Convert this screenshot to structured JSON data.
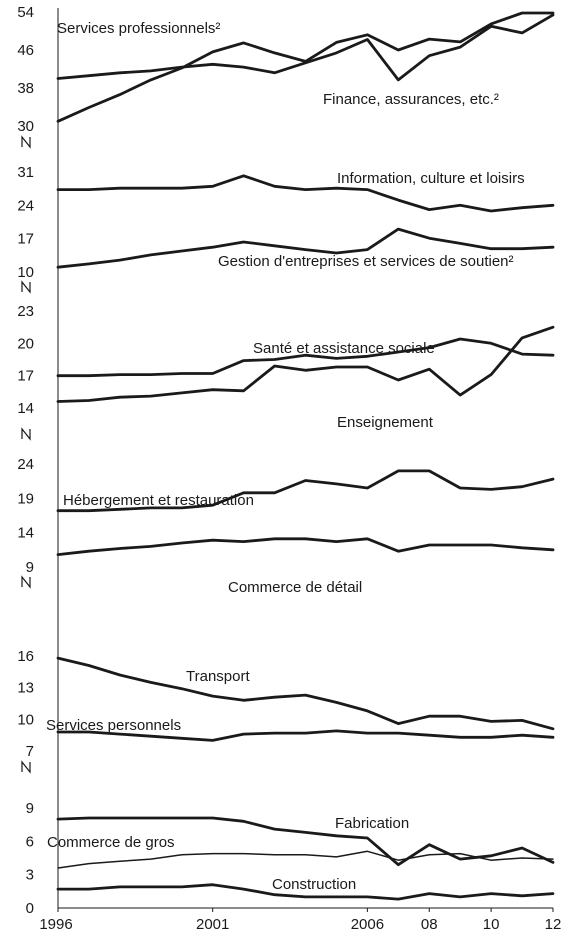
{
  "chart_data": [
    {
      "type": "line",
      "x": [
        1996,
        1997,
        1998,
        1999,
        2000,
        2001,
        2002,
        2003,
        2004,
        2005,
        2006,
        2007,
        2008,
        2009,
        2010,
        2011,
        2012
      ],
      "y_ticks": [
        "30",
        "38",
        "46",
        "54"
      ],
      "ylim": [
        30,
        54
      ],
      "axis_break": "N",
      "series": [
        {
          "name": "Services professionnels²",
          "values": [
            40,
            40.6,
            41.2,
            41.6,
            42.4,
            43,
            42.4,
            41.2,
            43.3,
            45.4,
            48.2,
            39.7,
            44.8,
            46.6,
            51,
            49.6,
            53.4
          ]
        },
        {
          "name": "Finance, assurances, etc.²",
          "values": [
            31,
            33.9,
            36.6,
            39.7,
            42.2,
            45.6,
            47.5,
            45.4,
            43.6,
            47.6,
            49.2,
            46,
            48.3,
            47.7,
            51.5,
            53.8,
            53.8
          ]
        }
      ]
    },
    {
      "type": "line",
      "x": [
        1996,
        1997,
        1998,
        1999,
        2000,
        2001,
        2002,
        2003,
        2004,
        2005,
        2006,
        2007,
        2008,
        2009,
        2010,
        2011,
        2012
      ],
      "y_ticks": [
        "10",
        "17",
        "24",
        "31"
      ],
      "ylim": [
        10,
        31
      ],
      "axis_break": "N",
      "series": [
        {
          "name": "Information, culture et loisirs",
          "values": [
            27.3,
            27.3,
            27.6,
            27.6,
            27.6,
            28,
            30.2,
            28,
            27.3,
            27.6,
            27.3,
            25.1,
            23.1,
            24,
            22.8,
            23.5,
            24
          ]
        },
        {
          "name": "Gestion d'entreprises et services de soutien²",
          "values": [
            11,
            11.7,
            12.5,
            13.6,
            14.4,
            15.2,
            16.3,
            15.5,
            14.7,
            14,
            14.7,
            19,
            17.1,
            16,
            14.9,
            14.9,
            15.2
          ]
        }
      ]
    },
    {
      "type": "line",
      "x": [
        1996,
        1997,
        1998,
        1999,
        2000,
        2001,
        2002,
        2003,
        2004,
        2005,
        2006,
        2007,
        2008,
        2009,
        2010,
        2011,
        2012
      ],
      "y_ticks": [
        "14",
        "17",
        "20",
        "23"
      ],
      "ylim": [
        14,
        23
      ],
      "axis_break": "N",
      "series": [
        {
          "name": "Santé et assistance sociale",
          "values": [
            17,
            17,
            17.1,
            17.1,
            17.2,
            17.2,
            18.4,
            18.5,
            18.9,
            18.6,
            18.8,
            19.2,
            19.6,
            20.4,
            20,
            19,
            18.9
          ]
        },
        {
          "name": "Enseignement",
          "values": [
            14.6,
            14.7,
            15,
            15.1,
            15.4,
            15.7,
            15.6,
            17.9,
            17.5,
            17.8,
            17.8,
            16.6,
            17.6,
            15.2,
            17.1,
            20.5,
            21.5
          ]
        }
      ]
    },
    {
      "type": "line",
      "x": [
        1996,
        1997,
        1998,
        1999,
        2000,
        2001,
        2002,
        2003,
        2004,
        2005,
        2006,
        2007,
        2008,
        2009,
        2010,
        2011,
        2012
      ],
      "y_ticks": [
        "9",
        "14",
        "19",
        "24"
      ],
      "ylim": [
        9,
        24
      ],
      "axis_break": "N",
      "series": [
        {
          "name": "Hébergement et restauration",
          "values": [
            17.2,
            17.2,
            17.4,
            17.6,
            17.6,
            18,
            19.8,
            19.8,
            21.6,
            21.1,
            20.5,
            23,
            23,
            20.5,
            20.3,
            20.7,
            21.8
          ]
        },
        {
          "name": "Commerce de détail",
          "values": [
            10.8,
            11.3,
            11.7,
            12,
            12.5,
            12.9,
            12.7,
            13.1,
            13.1,
            12.7,
            13.1,
            11.3,
            12.2,
            12.2,
            12.2,
            11.8,
            11.5
          ]
        }
      ]
    },
    {
      "type": "line",
      "x": [
        1996,
        1997,
        1998,
        1999,
        2000,
        2001,
        2002,
        2003,
        2004,
        2005,
        2006,
        2007,
        2008,
        2009,
        2010,
        2011,
        2012
      ],
      "y_ticks": [
        "7",
        "10",
        "13",
        "16"
      ],
      "ylim": [
        7,
        16
      ],
      "axis_break": "N",
      "series": [
        {
          "name": "Transport",
          "values": [
            15.8,
            15.1,
            14.2,
            13.5,
            12.9,
            12.2,
            11.8,
            12.1,
            12.3,
            11.6,
            10.8,
            9.6,
            10.3,
            10.3,
            9.8,
            9.9,
            9.1
          ]
        },
        {
          "name": "Services personnels",
          "values": [
            8.8,
            8.8,
            8.6,
            8.4,
            8.2,
            8,
            8.6,
            8.7,
            8.7,
            8.9,
            8.7,
            8.7,
            8.5,
            8.3,
            8.3,
            8.5,
            8.3
          ]
        }
      ]
    },
    {
      "type": "line",
      "x": [
        1996,
        1997,
        1998,
        1999,
        2000,
        2001,
        2002,
        2003,
        2004,
        2005,
        2006,
        2007,
        2008,
        2009,
        2010,
        2011,
        2012
      ],
      "x_ticks": [
        "1996",
        "2001",
        "2006",
        "08",
        "10",
        "12"
      ],
      "x_tick_values": [
        1996,
        2001,
        2006,
        2008,
        2010,
        2012
      ],
      "y_ticks": [
        "0",
        "3",
        "6",
        "9"
      ],
      "ylim": [
        0,
        9
      ],
      "series": [
        {
          "name": "Fabrication",
          "values": [
            8,
            8.1,
            8.1,
            8.1,
            8.1,
            8.1,
            7.8,
            7.1,
            6.8,
            6.5,
            6.3,
            3.9,
            5.7,
            4.4,
            4.7,
            5.4,
            4.1
          ]
        },
        {
          "name": "Commerce de gros",
          "values": [
            3.6,
            4,
            4.2,
            4.4,
            4.8,
            4.9,
            4.9,
            4.8,
            4.8,
            4.6,
            5.1,
            4.3,
            4.8,
            4.9,
            4.3,
            4.5,
            4.4
          ]
        },
        {
          "name": "Construction",
          "values": [
            1.7,
            1.7,
            1.9,
            1.9,
            1.9,
            2.1,
            1.7,
            1.2,
            1,
            1,
            1,
            0.8,
            1.3,
            1,
            1.3,
            1.1,
            1.3
          ]
        }
      ]
    }
  ]
}
